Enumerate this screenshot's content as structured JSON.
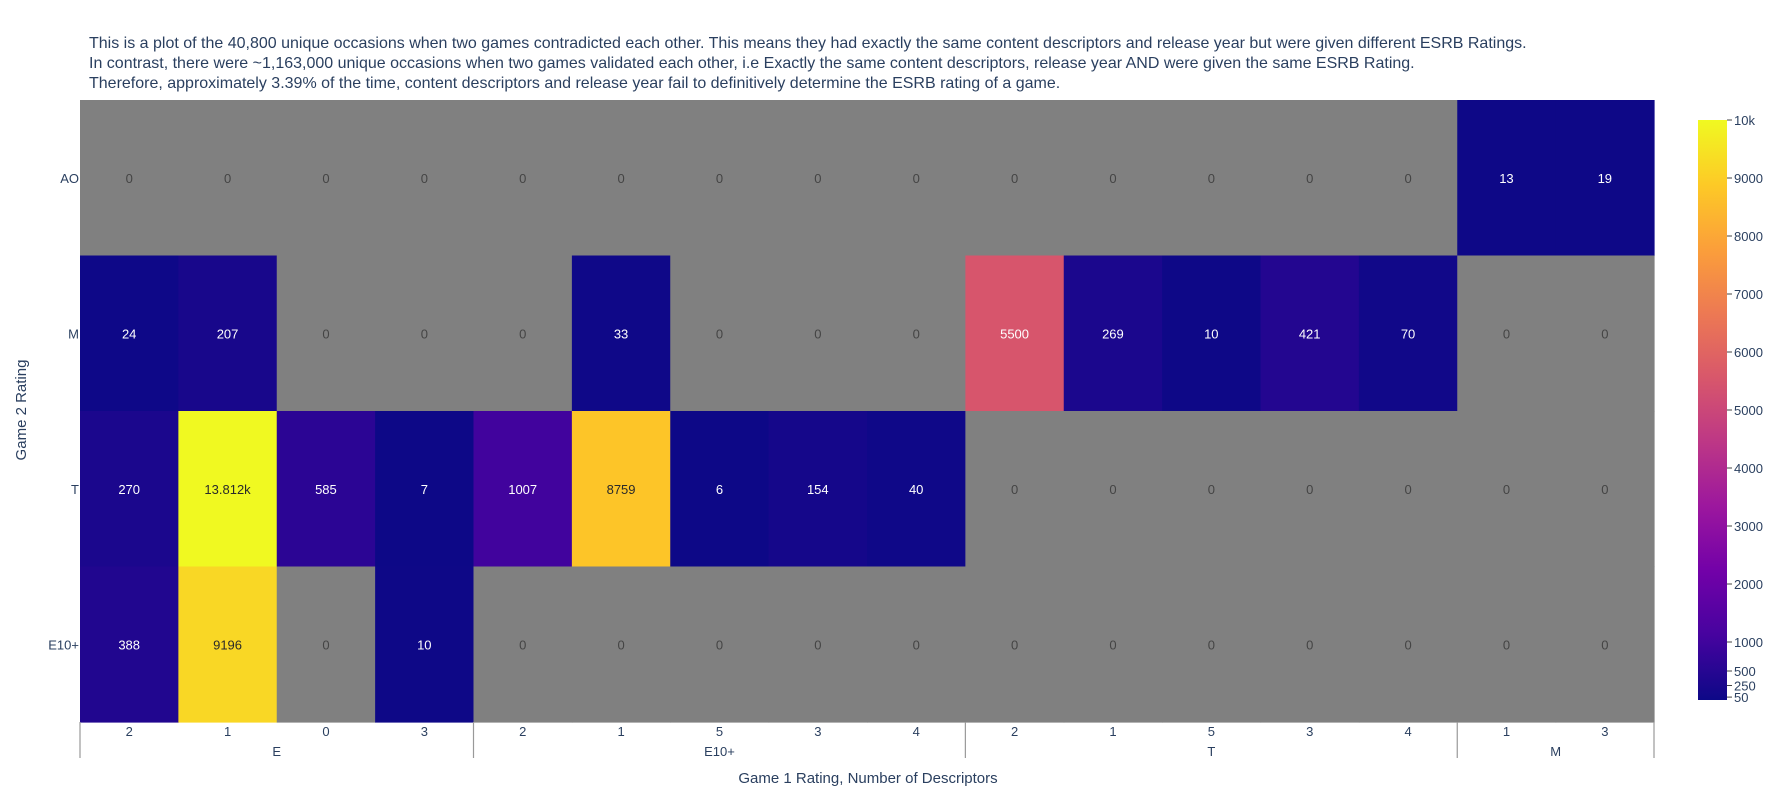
{
  "chart_data": {
    "type": "heatmap",
    "title_lines": [
      "This is a plot of the 40,800 unique occasions when two games contradicted each other. This means they had exactly the same content descriptors and release year but were given different ESRB Ratings.",
      "In contrast, there were ~1,163,000 unique occasions when two games validated each other, i.e Exactly the same content descriptors, release year AND were given the same ESRB Rating.",
      "Therefore, approximately 3.39% of the time, content descriptors and release year fail to definitively determine the ESRB rating of a game."
    ],
    "xlabel": "Game 1 Rating, Number of Descriptors",
    "ylabel": "Game 2 Rating",
    "x_groups": [
      {
        "label": "E",
        "categories": [
          "2",
          "1",
          "0",
          "3"
        ]
      },
      {
        "label": "E10+",
        "categories": [
          "2",
          "1",
          "5",
          "3",
          "4"
        ]
      },
      {
        "label": "T",
        "categories": [
          "2",
          "1",
          "5",
          "3",
          "4"
        ]
      },
      {
        "label": "M",
        "categories": [
          "1",
          "3"
        ]
      }
    ],
    "y_categories": [
      "AO",
      "M",
      "T",
      "E10+"
    ],
    "z": [
      [
        0,
        0,
        0,
        0,
        0,
        0,
        0,
        0,
        0,
        0,
        0,
        0,
        0,
        0,
        13,
        19
      ],
      [
        24,
        207,
        0,
        0,
        0,
        33,
        0,
        0,
        0,
        5500,
        269,
        10,
        421,
        70,
        0,
        0
      ],
      [
        270,
        13812,
        585,
        7,
        1007,
        8759,
        6,
        154,
        40,
        0,
        0,
        0,
        0,
        0,
        0,
        0
      ],
      [
        388,
        9196,
        0,
        10,
        0,
        0,
        0,
        0,
        0,
        0,
        0,
        0,
        0,
        0,
        0,
        0
      ]
    ],
    "text": [
      [
        "0",
        "0",
        "0",
        "0",
        "0",
        "0",
        "0",
        "0",
        "0",
        "0",
        "0",
        "0",
        "0",
        "0",
        "13",
        "19"
      ],
      [
        "24",
        "207",
        "0",
        "0",
        "0",
        "33",
        "0",
        "0",
        "0",
        "5500",
        "269",
        "10",
        "421",
        "70",
        "0",
        "0"
      ],
      [
        "270",
        "13.812k",
        "585",
        "7",
        "1007",
        "8759",
        "6",
        "154",
        "40",
        "0",
        "0",
        "0",
        "0",
        "0",
        "0",
        "0"
      ],
      [
        "388",
        "9196",
        "0",
        "10",
        "0",
        "0",
        "0",
        "0",
        "0",
        "0",
        "0",
        "0",
        "0",
        "0",
        "0",
        "0"
      ]
    ],
    "zero_color": "#808080",
    "colorscale": "plasma",
    "colorbar": {
      "range": [
        0,
        10000
      ],
      "ticks": [
        {
          "value": 10000,
          "label": "10k"
        },
        {
          "value": 9000,
          "label": "9000"
        },
        {
          "value": 8000,
          "label": "8000"
        },
        {
          "value": 7000,
          "label": "7000"
        },
        {
          "value": 6000,
          "label": "6000"
        },
        {
          "value": 5000,
          "label": "5000"
        },
        {
          "value": 4000,
          "label": "4000"
        },
        {
          "value": 3000,
          "label": "3000"
        },
        {
          "value": 2000,
          "label": "2000"
        },
        {
          "value": 1000,
          "label": "1000"
        },
        {
          "value": 500,
          "label": "500"
        },
        {
          "value": 250,
          "label": "250"
        },
        {
          "value": 50,
          "label": "50"
        }
      ]
    }
  }
}
